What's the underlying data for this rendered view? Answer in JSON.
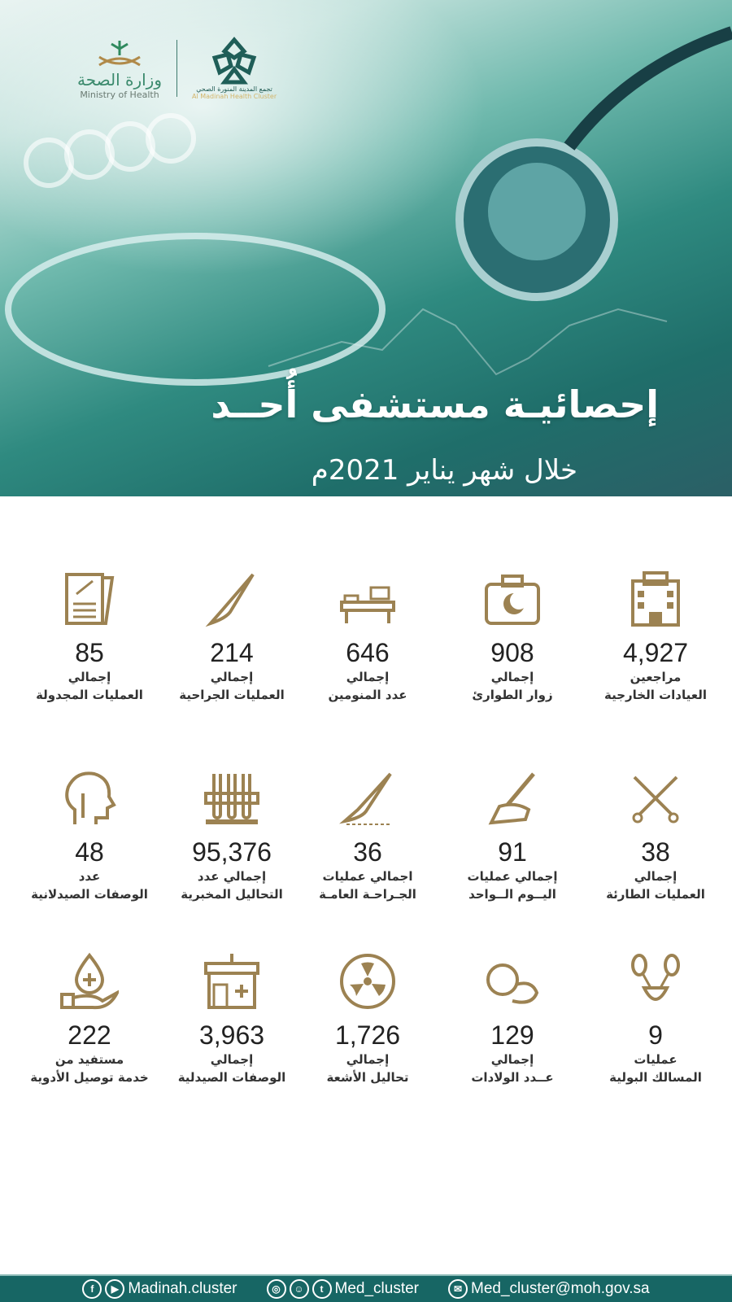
{
  "header": {
    "moh_logo": {
      "arabic": "وزارة الصحة",
      "english": "Ministry of Health"
    },
    "cluster_logo": {
      "arabic": "تجمع المدينة المنورة الصحي",
      "english": "Al Madinah Health Cluster"
    },
    "title": "إحصائيـة مستشفى أُحــد",
    "subtitle": "خلال شهر يناير 2021م"
  },
  "colors": {
    "accent": "#9c8252",
    "teal": "#176664"
  },
  "stats": [
    {
      "icon": "hospital-building-icon",
      "value": "4,927",
      "line1": "مراجعين",
      "line2": "العيادات الخارجية"
    },
    {
      "icon": "medical-bag-icon",
      "value": "908",
      "line1": "إجمالي",
      "line2": "زوار الطوارئ"
    },
    {
      "icon": "hospital-bed-icon",
      "value": "646",
      "line1": "إجمالي",
      "line2": "عدد المنومين"
    },
    {
      "icon": "scalpel-icon",
      "value": "214",
      "line1": "إجمالي",
      "line2": "العمليات الجراحية"
    },
    {
      "icon": "clipboard-checklist-icon",
      "value": "85",
      "line1": "إجمالي",
      "line2": "العمليات المجدولة"
    },
    {
      "icon": "surgical-tools-icon",
      "value": "38",
      "line1": "إجمالي",
      "line2": "العمليات الطارئة"
    },
    {
      "icon": "hand-scalpel-icon",
      "value": "91",
      "line1": "إجمالي عمليات",
      "line2": "اليــوم الــواحد"
    },
    {
      "icon": "scalpel-cut-icon",
      "value": "36",
      "line1": "اجمالي عمليات",
      "line2": "الجـراحـة العامـة"
    },
    {
      "icon": "test-tubes-icon",
      "value": "95,376",
      "line1": "إجمالي عدد",
      "line2": "التحاليل المخبرية"
    },
    {
      "icon": "head-anatomy-icon",
      "value": "48",
      "line1": "عدد",
      "line2": "الوصفات الصيدلانية"
    },
    {
      "icon": "urinary-system-icon",
      "value": "9",
      "line1": "عمليات",
      "line2": "المسالك البولية"
    },
    {
      "icon": "baby-icon",
      "value": "129",
      "line1": "إجمالي",
      "line2": "عــدد الولادات"
    },
    {
      "icon": "radiation-icon",
      "value": "1,726",
      "line1": "إجمالي",
      "line2": "تحاليل الأشعة"
    },
    {
      "icon": "pharmacy-store-icon",
      "value": "3,963",
      "line1": "إجمالي",
      "line2": "الوصفات الصيدلية"
    },
    {
      "icon": "hand-drop-icon",
      "value": "222",
      "line1": "مستفيد من",
      "line2": "خدمة توصيل الأدوية"
    }
  ],
  "footer": {
    "facebook_youtube": "Madinah.cluster",
    "instagram_snapchat_twitter": "Med_cluster",
    "email": "Med_cluster@moh.gov.sa"
  }
}
